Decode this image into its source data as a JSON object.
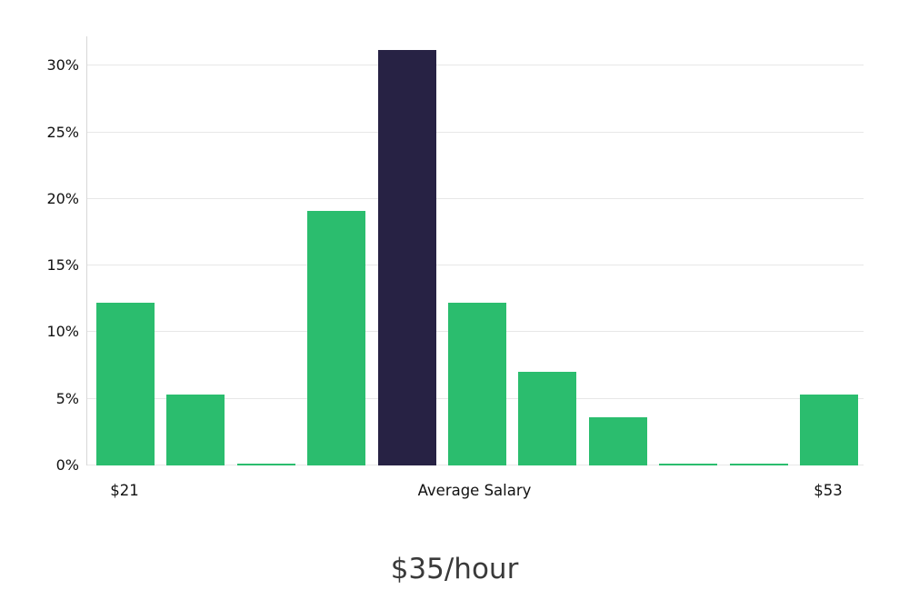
{
  "chart_data": {
    "type": "bar",
    "title": "$35/hour",
    "values": [
      12.2,
      5.3,
      0.1,
      19.1,
      31.2,
      12.2,
      7.0,
      3.6,
      0.1,
      0.1,
      5.3
    ],
    "highlight_index": 4,
    "yticks": [
      0,
      5,
      10,
      15,
      20,
      25,
      30
    ],
    "ytick_suffix": "%",
    "ylim": [
      0,
      32.2
    ],
    "xlabels": {
      "left": "$21",
      "center": "Average Salary",
      "right": "$53"
    },
    "colors": {
      "bar": "#2bbd6e",
      "highlight": "#272244",
      "gridline": "#e7e7e7",
      "axis_line": "#d8d8d8",
      "tick_text": "#111111",
      "title_text": "#3a3a3a"
    },
    "grid": true,
    "legend": false
  }
}
